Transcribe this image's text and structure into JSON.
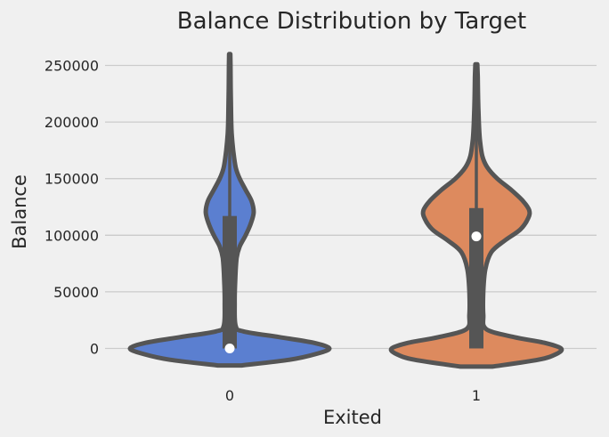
{
  "chart_data": {
    "type": "violin",
    "title": "Balance Distribution by Target",
    "xlabel": "Exited",
    "ylabel": "Balance",
    "categories": [
      "0",
      "1"
    ],
    "ylim": [
      -25000,
      265000
    ],
    "yticks": [
      0,
      50000,
      100000,
      150000,
      200000,
      250000
    ],
    "grid": true,
    "colors": {
      "0": "#5b7fd0",
      "1": "#dd8a5e",
      "outline": "#555555",
      "grid": "#cbcbcb",
      "background": "#f0f0f0"
    },
    "series": [
      {
        "category": "0",
        "min": 0,
        "q1": 0,
        "median": 0,
        "q3": 117000,
        "max": 260000,
        "density": [
          [
            -15000,
            0.12
          ],
          [
            -10000,
            0.6
          ],
          [
            -5000,
            0.86
          ],
          [
            0,
            1.0
          ],
          [
            5000,
            0.84
          ],
          [
            10000,
            0.5
          ],
          [
            15000,
            0.14
          ],
          [
            20000,
            0.06
          ],
          [
            40000,
            0.05
          ],
          [
            60000,
            0.055
          ],
          [
            80000,
            0.07
          ],
          [
            90000,
            0.1
          ],
          [
            100000,
            0.16
          ],
          [
            110000,
            0.21
          ],
          [
            120000,
            0.24
          ],
          [
            130000,
            0.22
          ],
          [
            140000,
            0.16
          ],
          [
            150000,
            0.1
          ],
          [
            160000,
            0.06
          ],
          [
            175000,
            0.035
          ],
          [
            190000,
            0.02
          ],
          [
            210000,
            0.013
          ],
          [
            230000,
            0.01
          ],
          [
            250000,
            0.008
          ],
          [
            260000,
            0.006
          ]
        ]
      },
      {
        "category": "1",
        "min": 0,
        "q1": 0,
        "median": 99000,
        "q3": 124000,
        "max": 251000,
        "density": [
          [
            -16000,
            0.16
          ],
          [
            -10000,
            0.62
          ],
          [
            -5000,
            0.8
          ],
          [
            0,
            0.85
          ],
          [
            5000,
            0.68
          ],
          [
            10000,
            0.38
          ],
          [
            17000,
            0.1
          ],
          [
            30000,
            0.07
          ],
          [
            50000,
            0.07
          ],
          [
            70000,
            0.09
          ],
          [
            85000,
            0.15
          ],
          [
            95000,
            0.28
          ],
          [
            105000,
            0.44
          ],
          [
            115000,
            0.52
          ],
          [
            122000,
            0.53
          ],
          [
            130000,
            0.47
          ],
          [
            140000,
            0.35
          ],
          [
            150000,
            0.21
          ],
          [
            160000,
            0.11
          ],
          [
            170000,
            0.06
          ],
          [
            185000,
            0.035
          ],
          [
            200000,
            0.025
          ],
          [
            220000,
            0.018
          ],
          [
            240000,
            0.014
          ],
          [
            251000,
            0.01
          ]
        ]
      }
    ]
  }
}
